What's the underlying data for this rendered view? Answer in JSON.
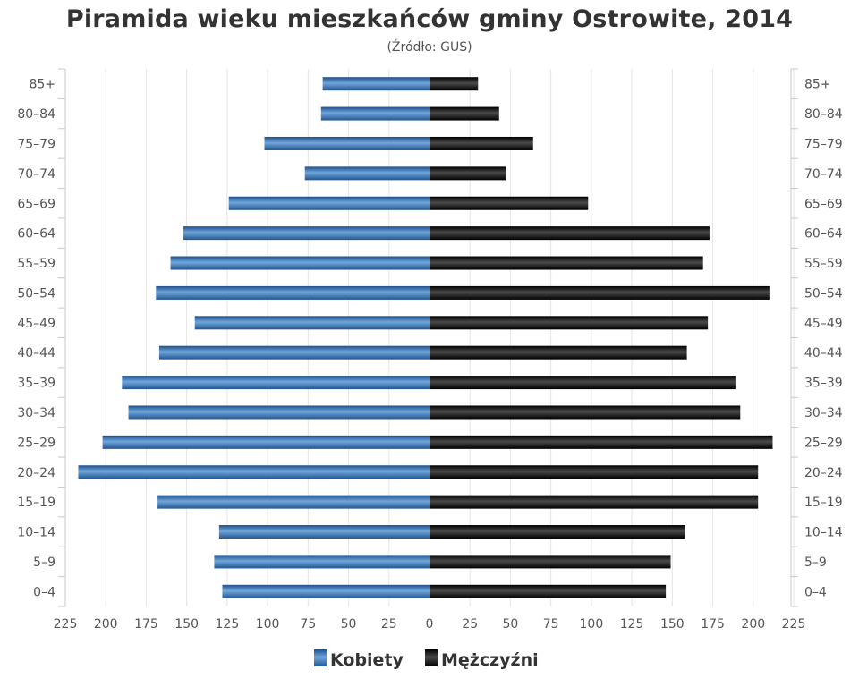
{
  "chart_data": {
    "type": "bar",
    "orientation": "horizontal",
    "title": "Piramida wieku mieszkańców gminy Ostrowite, 2014",
    "subtitle": "(Źródło: GUS)",
    "categories": [
      "0–4",
      "5–9",
      "10–14",
      "15–19",
      "20–24",
      "25–29",
      "30–34",
      "35–39",
      "40–44",
      "45–49",
      "50–54",
      "55–59",
      "60–64",
      "65–69",
      "70–74",
      "75–79",
      "80–84",
      "85+"
    ],
    "series": [
      {
        "name": "Kobiety",
        "side": "left",
        "color": "#3f7fc1",
        "values": [
          128,
          133,
          130,
          168,
          217,
          202,
          186,
          190,
          167,
          145,
          169,
          160,
          152,
          124,
          77,
          102,
          67,
          66
        ]
      },
      {
        "name": "Mężczyźni",
        "side": "right",
        "color": "#111111",
        "values": [
          146,
          149,
          158,
          203,
          203,
          212,
          192,
          189,
          159,
          172,
          210,
          169,
          173,
          98,
          47,
          64,
          43,
          30
        ]
      }
    ],
    "xticks": [
      "225",
      "200",
      "175",
      "150",
      "125",
      "100",
      "75",
      "50",
      "25",
      "0",
      "25",
      "50",
      "75",
      "100",
      "125",
      "150",
      "175",
      "200",
      "225"
    ],
    "xlim": [
      -225,
      225
    ],
    "grid": true,
    "legend_position": "bottom-center"
  }
}
